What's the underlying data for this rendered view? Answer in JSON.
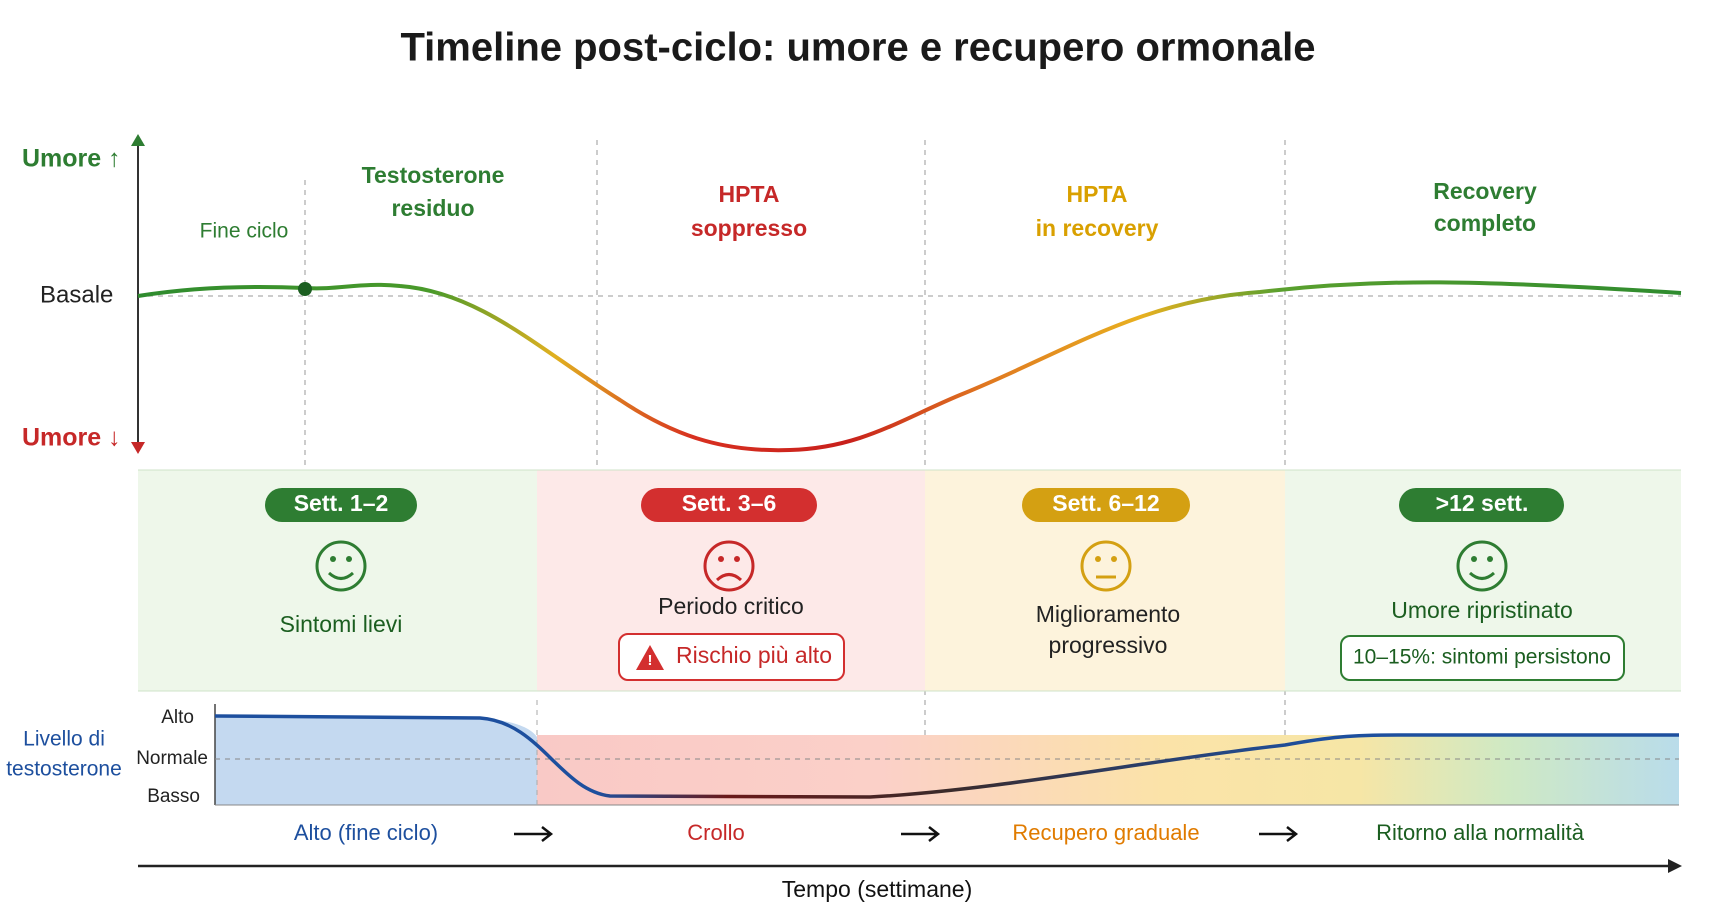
{
  "title": "Timeline post-ciclo: umore e recupero ormonale",
  "mood_axis": {
    "high": "Umore ↑",
    "baseline": "Basale",
    "low": "Umore ↓"
  },
  "end_cycle": "Fine ciclo",
  "phases": [
    {
      "lines": [
        "Testosterone",
        "residuo"
      ]
    },
    {
      "lines": [
        "HPTA",
        "soppresso"
      ]
    },
    {
      "lines": [
        "HPTA",
        "in recovery"
      ]
    },
    {
      "lines": [
        "Recovery",
        "completo"
      ]
    }
  ],
  "panels": [
    {
      "weeks": "Sett. 1–2",
      "status": [
        "Sintomi lievi"
      ]
    },
    {
      "weeks": "Sett. 3–6",
      "status": [
        "Periodo critico"
      ],
      "note": "Rischio più alto"
    },
    {
      "weeks": "Sett. 6–12",
      "status": [
        "Miglioramento",
        "progressivo"
      ]
    },
    {
      "weeks": ">12 sett.",
      "status": [
        "Umore ripristinato"
      ],
      "note": "10–15%: sintomi persistono"
    }
  ],
  "testosterone": {
    "label": [
      "Livello di",
      "testosterone"
    ],
    "levels": [
      "Alto",
      "Normale",
      "Basso"
    ],
    "stages": [
      "Alto (fine ciclo)",
      "Crollo",
      "Recupero graduale",
      "Ritorno alla normalità"
    ]
  },
  "x_axis_label": "Tempo (settimane)"
}
